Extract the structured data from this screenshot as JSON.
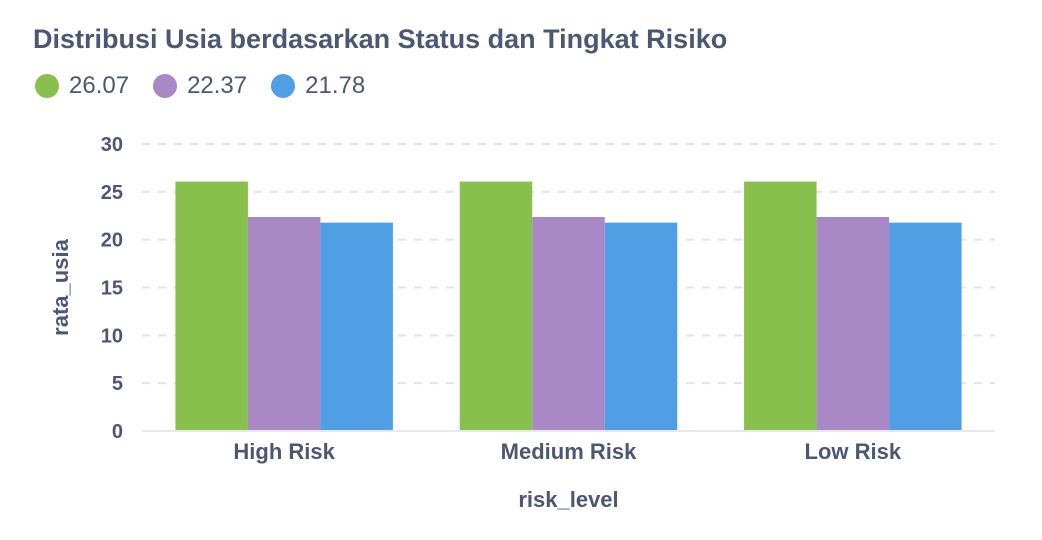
{
  "title": "Distribusi Usia berdasarkan Status dan Tingkat Risiko",
  "chart_data": {
    "type": "bar",
    "categories": [
      "High Risk",
      "Medium Risk",
      "Low Risk"
    ],
    "series": [
      {
        "name": "26.07",
        "color": "#88bf4d",
        "values": [
          26.07,
          26.07,
          26.07
        ]
      },
      {
        "name": "22.37",
        "color": "#a989c5",
        "values": [
          22.37,
          22.37,
          22.37
        ]
      },
      {
        "name": "21.78",
        "color": "#509ee3",
        "values": [
          21.78,
          21.78,
          21.78
        ]
      }
    ],
    "xlabel": "risk_level",
    "ylabel": "rata_usia",
    "ylim": [
      0,
      30
    ],
    "yticks": [
      0,
      5,
      10,
      15,
      20,
      25,
      30
    ],
    "grid": true,
    "legend": "top-left"
  }
}
